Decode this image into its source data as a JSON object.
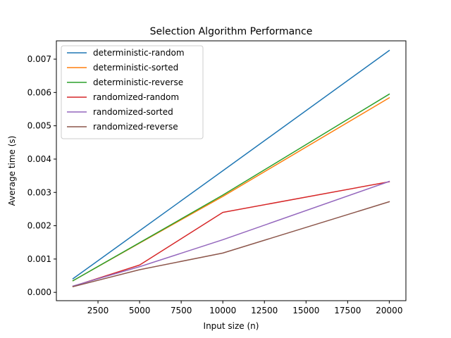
{
  "chart_data": {
    "type": "line",
    "title": "Selection Algorithm Performance",
    "xlabel": "Input size (n)",
    "ylabel": "Average time (s)",
    "x": [
      1000,
      5000,
      10000,
      20000
    ],
    "xlim": [
      0,
      21000
    ],
    "ylim": [
      -0.00025,
      0.00755
    ],
    "xticks": [
      2500,
      5000,
      7500,
      10000,
      12500,
      15000,
      17500,
      20000
    ],
    "xtick_labels": [
      "2500",
      "5000",
      "7500",
      "10000",
      "12500",
      "15000",
      "17500",
      "20000"
    ],
    "yticks": [
      0.0,
      0.001,
      0.002,
      0.003,
      0.004,
      0.005,
      0.006,
      0.007
    ],
    "ytick_labels": [
      "0.000",
      "0.001",
      "0.002",
      "0.003",
      "0.004",
      "0.005",
      "0.006",
      "0.007"
    ],
    "grid": false,
    "legend_position": "top-left",
    "series": [
      {
        "name": "deterministic-random",
        "color": "#1f77b4",
        "values": [
          0.00041,
          0.00185,
          0.00365,
          0.00726
        ]
      },
      {
        "name": "deterministic-sorted",
        "color": "#ff7f0e",
        "values": [
          0.00035,
          0.00148,
          0.00288,
          0.00584
        ]
      },
      {
        "name": "deterministic-reverse",
        "color": "#2ca02c",
        "values": [
          0.00035,
          0.00149,
          0.00292,
          0.00595
        ]
      },
      {
        "name": "randomized-random",
        "color": "#d62728",
        "values": [
          0.00018,
          0.00082,
          0.0024,
          0.00332
        ]
      },
      {
        "name": "randomized-sorted",
        "color": "#9467bd",
        "values": [
          0.00019,
          0.00077,
          0.00158,
          0.00333
        ]
      },
      {
        "name": "randomized-reverse",
        "color": "#8c564b",
        "values": [
          0.00017,
          0.00068,
          0.00118,
          0.00272
        ]
      }
    ]
  }
}
